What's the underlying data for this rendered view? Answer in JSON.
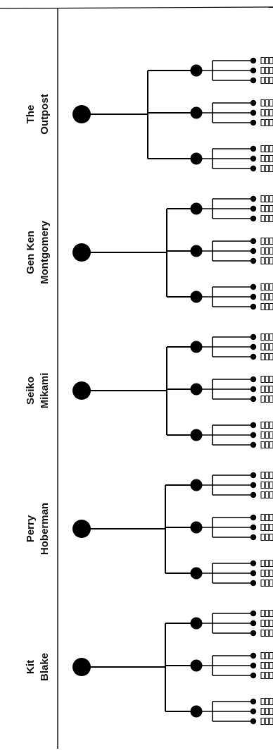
{
  "diagram": {
    "type": "tree",
    "line_color": "#000000",
    "background": "#ffffff",
    "branches": [
      {
        "label_line1": "The",
        "label_line2": "Outpost",
        "children": 3,
        "grandchildren": 3,
        "leaves": 4
      },
      {
        "label_line1": "Gen Ken",
        "label_line2": "Montgomery",
        "children": 3,
        "grandchildren": 3,
        "leaves": 4
      },
      {
        "label_line1": "Seiko",
        "label_line2": "Mikami",
        "children": 3,
        "grandchildren": 3,
        "leaves": 4
      },
      {
        "label_line1": "Perry",
        "label_line2": "Hoberman",
        "children": 3,
        "grandchildren": 3,
        "leaves": 4
      },
      {
        "label_line1": "Kit",
        "label_line2": "Blake",
        "children": 3,
        "grandchildren": 3,
        "leaves": 4
      }
    ]
  }
}
